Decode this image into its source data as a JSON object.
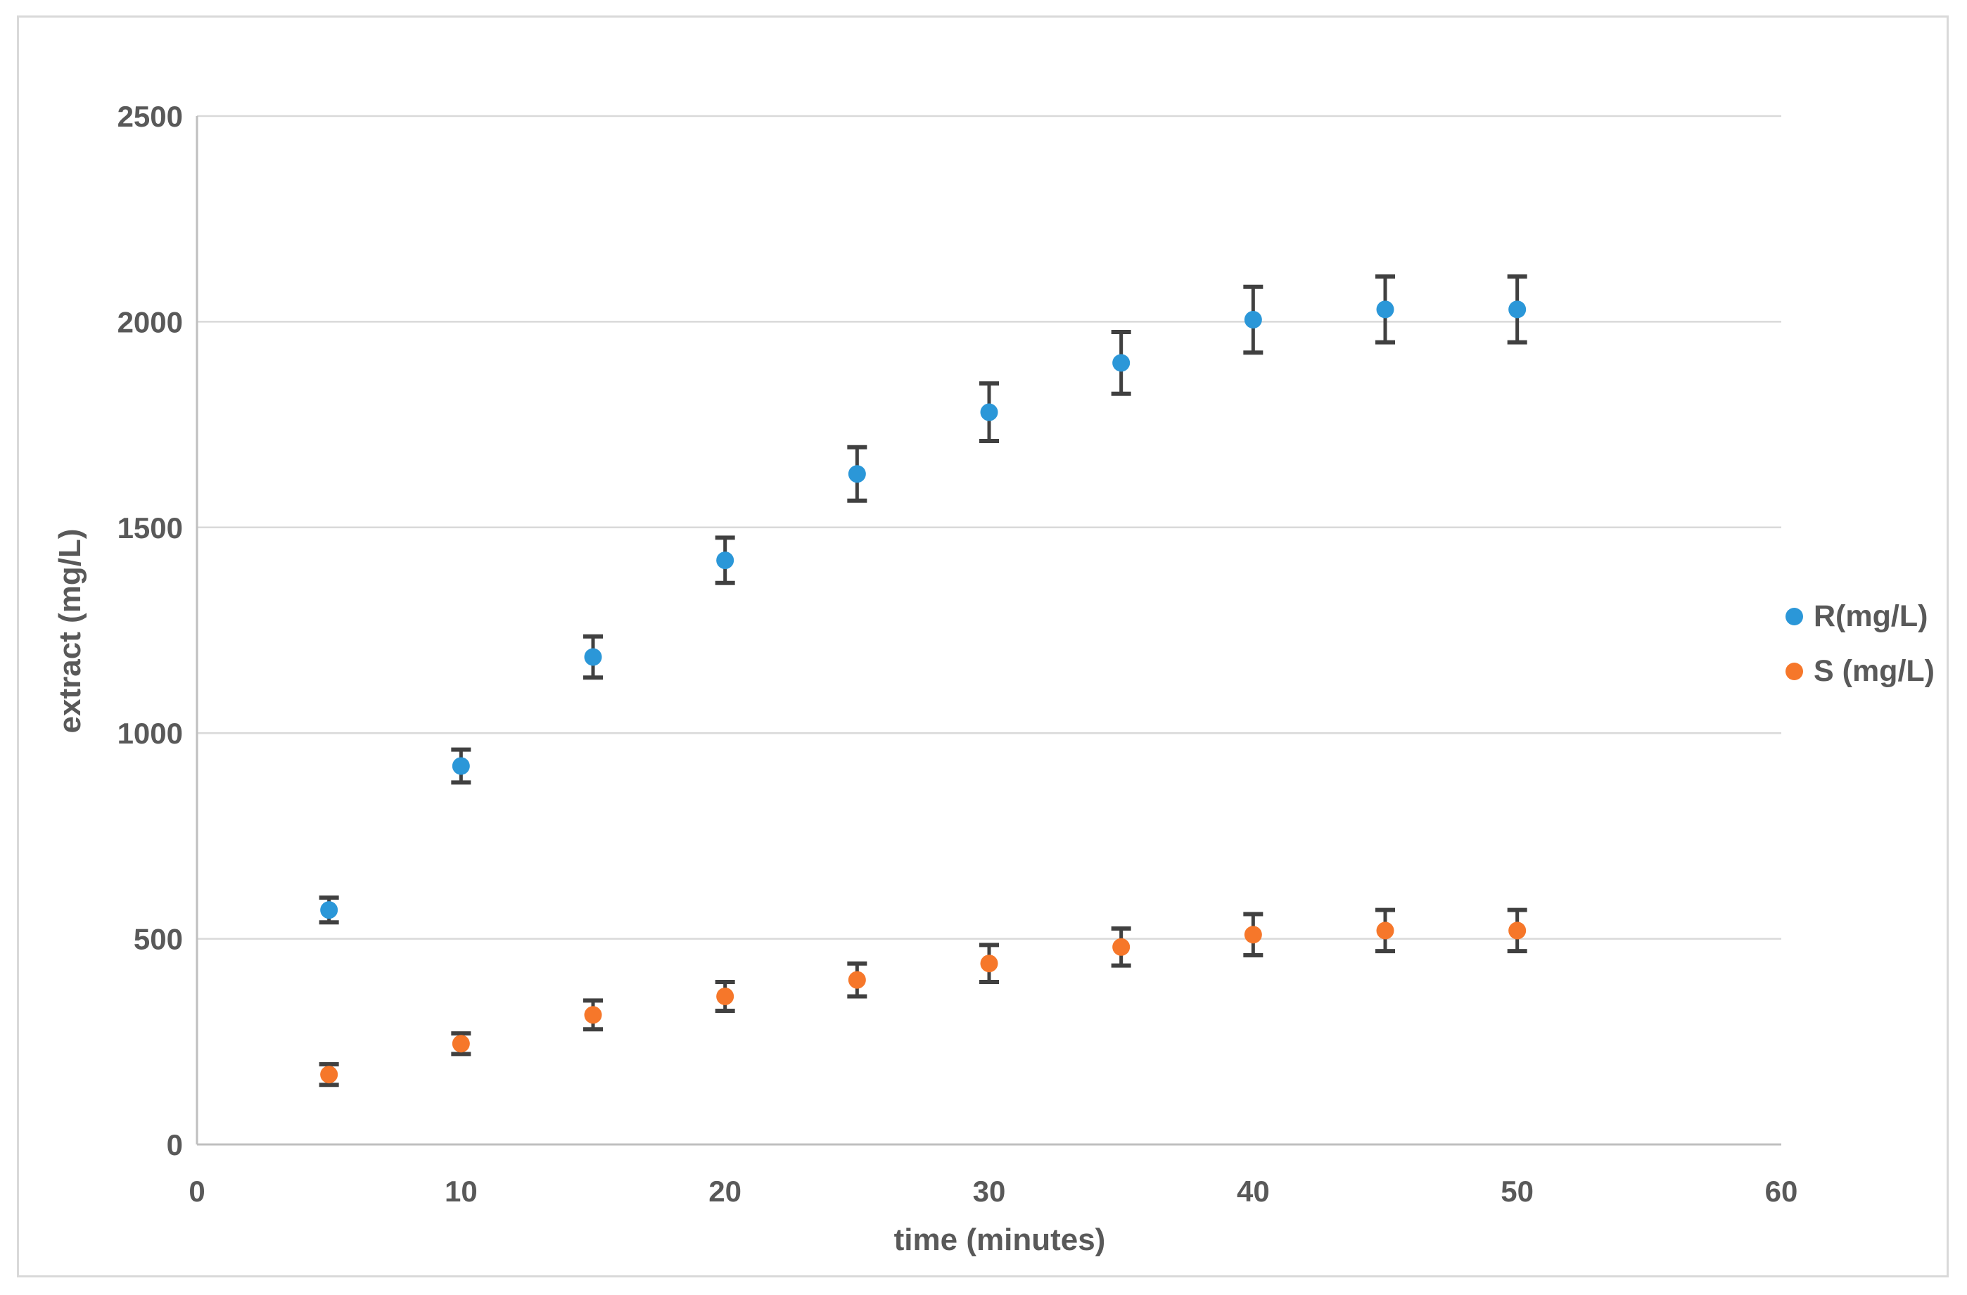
{
  "chart_data": {
    "type": "scatter",
    "title": "",
    "xlabel": "time (minutes)",
    "ylabel": "extract (mg/L)",
    "x": [
      5,
      10,
      15,
      20,
      25,
      30,
      35,
      40,
      45,
      50
    ],
    "series": [
      {
        "name": "R(mg/L)",
        "color": "#2b97d8",
        "values": [
          570,
          920,
          1185,
          1420,
          1630,
          1780,
          1900,
          2005,
          2030,
          2030
        ],
        "errors": [
          30,
          40,
          50,
          55,
          65,
          70,
          75,
          80,
          80,
          80
        ]
      },
      {
        "name": "S (mg/L)",
        "color": "#f6772a",
        "values": [
          170,
          245,
          315,
          360,
          400,
          440,
          480,
          510,
          520,
          520
        ],
        "errors": [
          25,
          25,
          35,
          35,
          40,
          45,
          45,
          50,
          50,
          50
        ]
      }
    ],
    "x_ticks": [
      0,
      10,
      20,
      30,
      40,
      50,
      60
    ],
    "y_ticks": [
      0,
      500,
      1000,
      1500,
      2000,
      2500
    ],
    "xlim": [
      0,
      60
    ],
    "ylim": [
      0,
      2500
    ],
    "grid": "horizontal",
    "error_bars": true,
    "legend_position": "right",
    "colors": {
      "gridline": "#d9d9d9",
      "axis_line": "#bfbfbf",
      "error_bar": "#404040",
      "tick_text": "#595959",
      "border": "#d9d9d9",
      "background": "#ffffff"
    }
  }
}
